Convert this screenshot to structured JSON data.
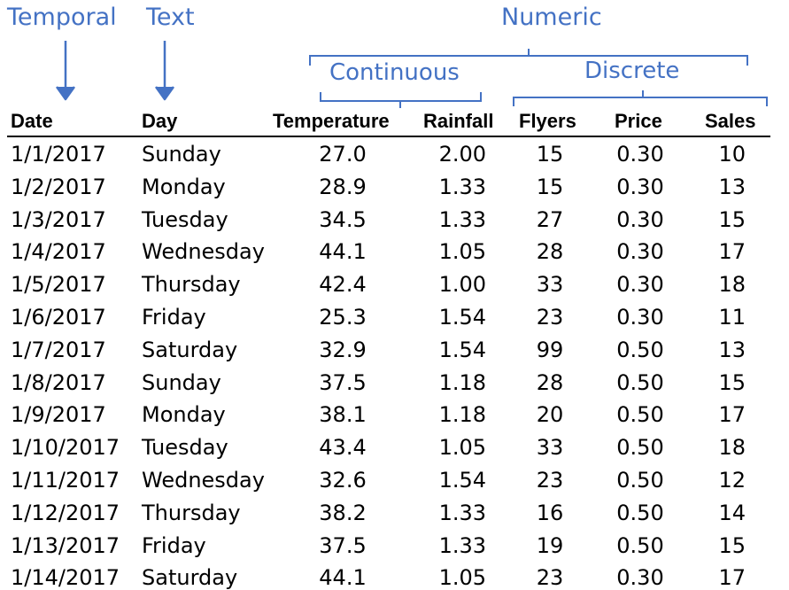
{
  "annotations": {
    "temporal": "Temporal",
    "text": "Text",
    "numeric": "Numeric",
    "continuous": "Continuous",
    "discrete": "Discrete",
    "color": "#4472c4"
  },
  "columns": [
    "Date",
    "Day",
    "Temperature",
    "Rainfall",
    "Flyers",
    "Price",
    "Sales"
  ],
  "rows": [
    [
      "1/1/2017",
      "Sunday",
      "27.0",
      "2.00",
      "15",
      "0.30",
      "10"
    ],
    [
      "1/2/2017",
      "Monday",
      "28.9",
      "1.33",
      "15",
      "0.30",
      "13"
    ],
    [
      "1/3/2017",
      "Tuesday",
      "34.5",
      "1.33",
      "27",
      "0.30",
      "15"
    ],
    [
      "1/4/2017",
      "Wednesday",
      "44.1",
      "1.05",
      "28",
      "0.30",
      "17"
    ],
    [
      "1/5/2017",
      "Thursday",
      "42.4",
      "1.00",
      "33",
      "0.30",
      "18"
    ],
    [
      "1/6/2017",
      "Friday",
      "25.3",
      "1.54",
      "23",
      "0.30",
      "11"
    ],
    [
      "1/7/2017",
      "Saturday",
      "32.9",
      "1.54",
      "99",
      "0.50",
      "13"
    ],
    [
      "1/8/2017",
      "Sunday",
      "37.5",
      "1.18",
      "28",
      "0.50",
      "15"
    ],
    [
      "1/9/2017",
      "Monday",
      "38.1",
      "1.18",
      "20",
      "0.50",
      "17"
    ],
    [
      "1/10/2017",
      "Tuesday",
      "43.4",
      "1.05",
      "33",
      "0.50",
      "18"
    ],
    [
      "1/11/2017",
      "Wednesday",
      "32.6",
      "1.54",
      "23",
      "0.50",
      "12"
    ],
    [
      "1/12/2017",
      "Thursday",
      "38.2",
      "1.33",
      "16",
      "0.50",
      "14"
    ],
    [
      "1/13/2017",
      "Friday",
      "37.5",
      "1.33",
      "19",
      "0.50",
      "15"
    ],
    [
      "1/14/2017",
      "Saturday",
      "44.1",
      "1.05",
      "23",
      "0.30",
      "17"
    ]
  ]
}
